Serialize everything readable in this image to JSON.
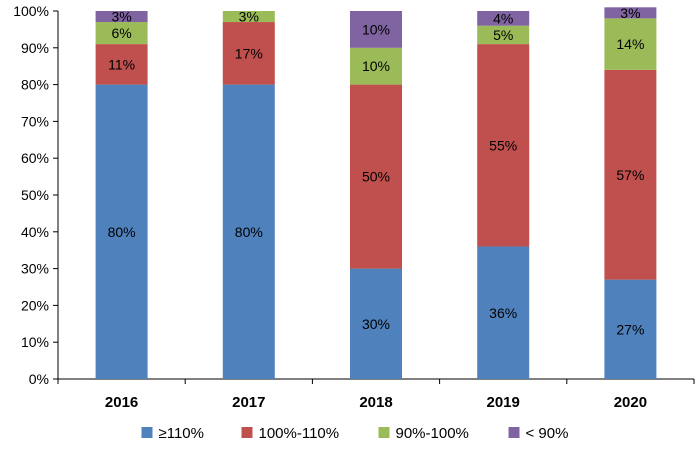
{
  "chart_data": {
    "type": "bar",
    "stacked": true,
    "title": "",
    "xlabel": "",
    "ylabel": "",
    "ylim": [
      0,
      100
    ],
    "y_ticks": [
      "0%",
      "10%",
      "20%",
      "30%",
      "40%",
      "50%",
      "60%",
      "70%",
      "80%",
      "90%",
      "100%"
    ],
    "grid": false,
    "legend_position": "bottom",
    "categories": [
      "2016",
      "2017",
      "2018",
      "2019",
      "2020"
    ],
    "series": [
      {
        "name": "≥110%",
        "color": "#4F81BD",
        "values": [
          80,
          80,
          30,
          36,
          27
        ],
        "labels": [
          "80%",
          "80%",
          "30%",
          "36%",
          "27%"
        ]
      },
      {
        "name": "100%-110%",
        "color": "#C0504D",
        "values": [
          11,
          17,
          50,
          55,
          57
        ],
        "labels": [
          "11%",
          "17%",
          "50%",
          "55%",
          "57%"
        ]
      },
      {
        "name": "90%-100%",
        "color": "#9BBB59",
        "values": [
          6,
          3,
          10,
          5,
          14
        ],
        "labels": [
          "6%",
          "3%",
          "10%",
          "5%",
          "14%"
        ]
      },
      {
        "name": "< 90%",
        "color": "#8064A2",
        "values": [
          3,
          0,
          10,
          4,
          3
        ],
        "labels": [
          "3%",
          "",
          "10%",
          "4%",
          "3%"
        ]
      }
    ]
  }
}
